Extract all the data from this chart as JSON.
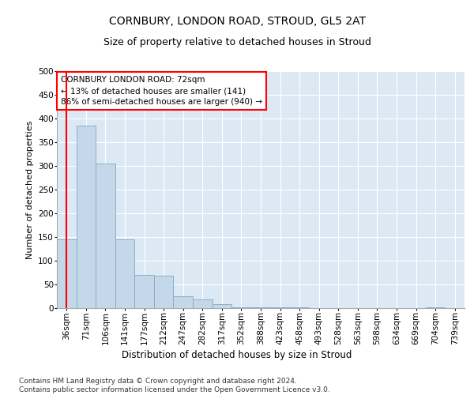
{
  "title": "CORNBURY, LONDON ROAD, STROUD, GL5 2AT",
  "subtitle": "Size of property relative to detached houses in Stroud",
  "xlabel": "Distribution of detached houses by size in Stroud",
  "ylabel": "Number of detached properties",
  "bar_color": "#c5d8ea",
  "bar_edge_color": "#7aaac8",
  "background_color": "#dce9f5",
  "categories": [
    "36sqm",
    "71sqm",
    "106sqm",
    "141sqm",
    "177sqm",
    "212sqm",
    "247sqm",
    "282sqm",
    "317sqm",
    "352sqm",
    "388sqm",
    "423sqm",
    "458sqm",
    "493sqm",
    "528sqm",
    "563sqm",
    "598sqm",
    "634sqm",
    "669sqm",
    "704sqm",
    "739sqm"
  ],
  "values": [
    145,
    385,
    305,
    145,
    70,
    68,
    25,
    18,
    8,
    1,
    1,
    1,
    1,
    0,
    0,
    0,
    0,
    0,
    0,
    1,
    0
  ],
  "ylim": [
    0,
    500
  ],
  "yticks": [
    0,
    50,
    100,
    150,
    200,
    250,
    300,
    350,
    400,
    450,
    500
  ],
  "annotation_text": "CORNBURY LONDON ROAD: 72sqm\n← 13% of detached houses are smaller (141)\n86% of semi-detached houses are larger (940) →",
  "annotation_box_color": "white",
  "annotation_box_edge_color": "red",
  "vline_color": "red",
  "vline_x_index": 0.5,
  "footnote": "Contains HM Land Registry data © Crown copyright and database right 2024.\nContains public sector information licensed under the Open Government Licence v3.0.",
  "title_fontsize": 10,
  "subtitle_fontsize": 9,
  "xlabel_fontsize": 8.5,
  "ylabel_fontsize": 8,
  "tick_fontsize": 7.5,
  "annotation_fontsize": 7.5,
  "footnote_fontsize": 6.5
}
